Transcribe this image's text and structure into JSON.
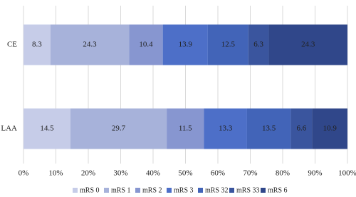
{
  "chart_data": {
    "type": "stacked-bar-horizontal",
    "categories": [
      "CE",
      "LAA"
    ],
    "series": [
      {
        "name": "mRS 0",
        "color": "#c6cce8",
        "values": [
          8.3,
          14.5
        ]
      },
      {
        "name": "mRS 1",
        "color": "#a7b2da",
        "values": [
          24.3,
          29.7
        ]
      },
      {
        "name": "mRS 2",
        "color": "#8796d0",
        "values": [
          10.4,
          11.5
        ]
      },
      {
        "name": "mRS 3",
        "color": "#4d6fc8",
        "values": [
          13.9,
          13.3
        ]
      },
      {
        "name": "mRS 32",
        "color": "#4264b8",
        "values": [
          12.5,
          13.5
        ]
      },
      {
        "name": "mRS 33",
        "color": "#3a559e",
        "values": [
          6.3,
          6.6
        ]
      },
      {
        "name": "mRS 6",
        "color": "#30478a",
        "values": [
          24.3,
          10.9
        ]
      }
    ],
    "xlim": [
      0,
      100
    ],
    "xticks": [
      {
        "value": 0,
        "label": "0%"
      },
      {
        "value": 10,
        "label": "10%"
      },
      {
        "value": 20,
        "label": "20%"
      },
      {
        "value": 30,
        "label": "30%"
      },
      {
        "value": 40,
        "label": "40%"
      },
      {
        "value": 50,
        "label": "50%"
      },
      {
        "value": 60,
        "label": "60%"
      },
      {
        "value": 70,
        "label": "70%"
      },
      {
        "value": 80,
        "label": "80%"
      },
      {
        "value": 90,
        "label": "90%"
      },
      {
        "value": 100,
        "label": "100%"
      }
    ],
    "grid": true,
    "legend": "bottom"
  }
}
